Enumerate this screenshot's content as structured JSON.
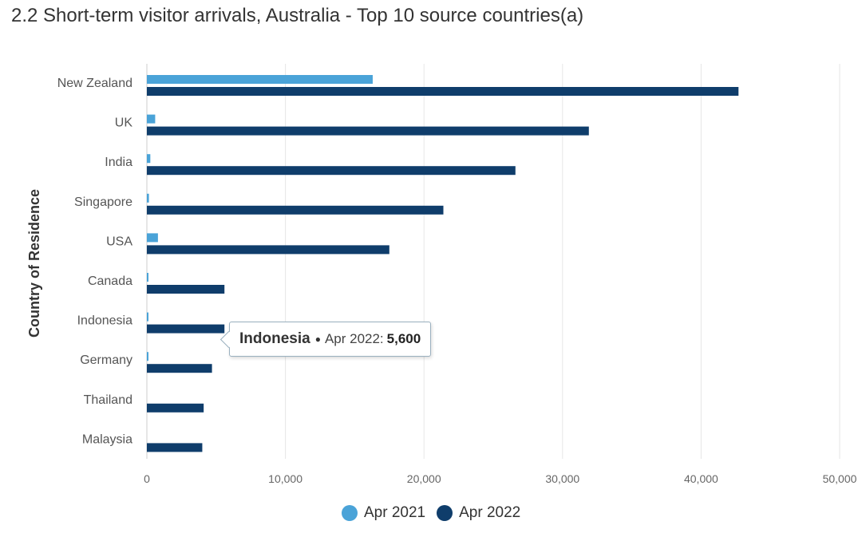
{
  "title": "2.2 Short-term visitor arrivals, Australia - Top 10 source countries(a)",
  "chart_data": {
    "type": "bar",
    "orientation": "horizontal",
    "categories": [
      "New Zealand",
      "UK",
      "India",
      "Singapore",
      "USA",
      "Canada",
      "Indonesia",
      "Germany",
      "Thailand",
      "Malaysia"
    ],
    "series": [
      {
        "name": "Apr 2021",
        "color": "#4aa3d8",
        "values": [
          16300,
          600,
          250,
          150,
          800,
          80,
          90,
          80,
          0,
          0
        ]
      },
      {
        "name": "Apr 2022",
        "color": "#0f3d6b",
        "values": [
          42700,
          31900,
          26600,
          21400,
          17500,
          5600,
          5600,
          4700,
          4100,
          4000
        ]
      }
    ],
    "xlim": [
      0,
      50000
    ],
    "xticks": [
      "0",
      "10,000",
      "20,000",
      "30,000",
      "40,000",
      "50,000"
    ],
    "ylabel": "Country of Residence",
    "grid": true,
    "legend_position": "bottom-center"
  },
  "tooltip": {
    "category": "Indonesia",
    "series": "Apr 2022:",
    "value": "5,600"
  }
}
